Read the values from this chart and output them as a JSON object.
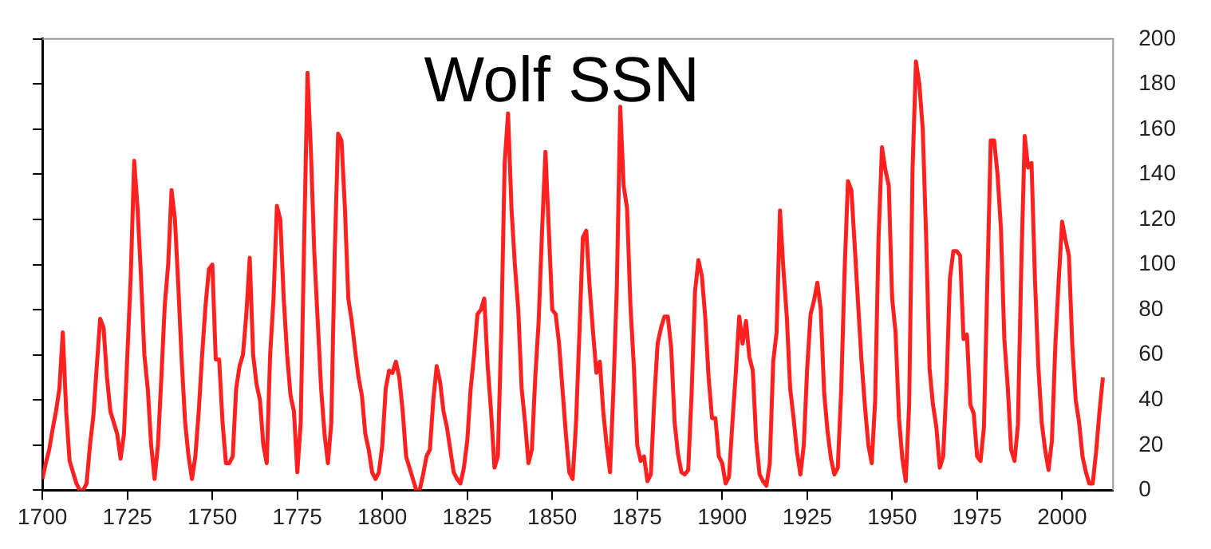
{
  "chart_data": {
    "type": "line",
    "title": "Wolf SSN",
    "x": [
      1700,
      1701,
      1702,
      1703,
      1704,
      1705,
      1706,
      1707,
      1708,
      1709,
      1710,
      1711,
      1712,
      1713,
      1714,
      1715,
      1716,
      1717,
      1718,
      1719,
      1720,
      1721,
      1722,
      1723,
      1724,
      1725,
      1726,
      1727,
      1728,
      1729,
      1730,
      1731,
      1732,
      1733,
      1734,
      1735,
      1736,
      1737,
      1738,
      1739,
      1740,
      1741,
      1742,
      1743,
      1744,
      1745,
      1746,
      1747,
      1748,
      1749,
      1750,
      1751,
      1752,
      1753,
      1754,
      1755,
      1756,
      1757,
      1758,
      1759,
      1760,
      1761,
      1762,
      1763,
      1764,
      1765,
      1766,
      1767,
      1768,
      1769,
      1770,
      1771,
      1772,
      1773,
      1774,
      1775,
      1776,
      1777,
      1778,
      1779,
      1780,
      1781,
      1782,
      1783,
      1784,
      1785,
      1786,
      1787,
      1788,
      1789,
      1790,
      1791,
      1792,
      1793,
      1794,
      1795,
      1796,
      1797,
      1798,
      1799,
      1800,
      1801,
      1802,
      1803,
      1804,
      1805,
      1806,
      1807,
      1808,
      1809,
      1810,
      1811,
      1812,
      1813,
      1814,
      1815,
      1816,
      1817,
      1818,
      1819,
      1820,
      1821,
      1822,
      1823,
      1824,
      1825,
      1826,
      1827,
      1828,
      1829,
      1830,
      1831,
      1832,
      1833,
      1834,
      1835,
      1836,
      1837,
      1838,
      1839,
      1840,
      1841,
      1842,
      1843,
      1844,
      1845,
      1846,
      1847,
      1848,
      1849,
      1850,
      1851,
      1852,
      1853,
      1854,
      1855,
      1856,
      1857,
      1858,
      1859,
      1860,
      1861,
      1862,
      1863,
      1864,
      1865,
      1866,
      1867,
      1868,
      1869,
      1870,
      1871,
      1872,
      1873,
      1874,
      1875,
      1876,
      1877,
      1878,
      1879,
      1880,
      1881,
      1882,
      1883,
      1884,
      1885,
      1886,
      1887,
      1888,
      1889,
      1890,
      1891,
      1892,
      1893,
      1894,
      1895,
      1896,
      1897,
      1898,
      1899,
      1900,
      1901,
      1902,
      1903,
      1904,
      1905,
      1906,
      1907,
      1908,
      1909,
      1910,
      1911,
      1912,
      1913,
      1914,
      1915,
      1916,
      1917,
      1918,
      1919,
      1920,
      1921,
      1922,
      1923,
      1924,
      1925,
      1926,
      1927,
      1928,
      1929,
      1930,
      1931,
      1932,
      1933,
      1934,
      1935,
      1936,
      1937,
      1938,
      1939,
      1940,
      1941,
      1942,
      1943,
      1944,
      1945,
      1946,
      1947,
      1948,
      1949,
      1950,
      1951,
      1952,
      1953,
      1954,
      1955,
      1956,
      1957,
      1958,
      1959,
      1960,
      1961,
      1962,
      1963,
      1964,
      1965,
      1966,
      1967,
      1968,
      1969,
      1970,
      1971,
      1972,
      1973,
      1974,
      1975,
      1976,
      1977,
      1978,
      1979,
      1980,
      1981,
      1982,
      1983,
      1984,
      1985,
      1986,
      1987,
      1988,
      1989,
      1990,
      1991,
      1992,
      1993,
      1994,
      1995,
      1996,
      1997,
      1998,
      1999,
      2000,
      2001,
      2002,
      2003,
      2004,
      2005,
      2006,
      2007,
      2008,
      2009,
      2010,
      2011,
      2012
    ],
    "series": [
      {
        "color": "#ff2020",
        "values": [
          5,
          12,
          18,
          27,
          35,
          45,
          70,
          35,
          13,
          8,
          3,
          0,
          0,
          3,
          20,
          33,
          55,
          76,
          72,
          50,
          35,
          30,
          25,
          14,
          25,
          60,
          95,
          146,
          125,
          95,
          60,
          45,
          20,
          5,
          20,
          50,
          82,
          100,
          133,
          120,
          90,
          57,
          30,
          15,
          5,
          15,
          35,
          60,
          82,
          98,
          100,
          58,
          58,
          30,
          12,
          12,
          15,
          45,
          55,
          60,
          78,
          103,
          60,
          47,
          40,
          20,
          12,
          60,
          85,
          126,
          120,
          85,
          60,
          42,
          35,
          8,
          30,
          110,
          185,
          150,
          105,
          75,
          45,
          25,
          12,
          30,
          105,
          158,
          155,
          125,
          85,
          75,
          62,
          50,
          42,
          25,
          18,
          8,
          5,
          8,
          20,
          45,
          53,
          52,
          57,
          50,
          35,
          15,
          10,
          5,
          0,
          0,
          7,
          15,
          18,
          40,
          55,
          48,
          35,
          28,
          18,
          8,
          5,
          3,
          10,
          22,
          45,
          60,
          78,
          80,
          85,
          55,
          35,
          10,
          15,
          70,
          145,
          167,
          125,
          100,
          80,
          45,
          30,
          12,
          18,
          50,
          75,
          115,
          150,
          115,
          80,
          78,
          65,
          45,
          25,
          8,
          5,
          30,
          70,
          112,
          115,
          90,
          70,
          52,
          57,
          35,
          20,
          8,
          45,
          90,
          170,
          135,
          125,
          82,
          55,
          20,
          13,
          15,
          4,
          7,
          40,
          65,
          72,
          77,
          77,
          63,
          30,
          16,
          8,
          7,
          9,
          43,
          88,
          102,
          95,
          77,
          50,
          32,
          32,
          15,
          12,
          3,
          6,
          30,
          52,
          77,
          65,
          75,
          59,
          53,
          22,
          7,
          4,
          2,
          12,
          57,
          70,
          124,
          98,
          77,
          45,
          32,
          17,
          7,
          20,
          54,
          78,
          84,
          92,
          80,
          43,
          26,
          14,
          7,
          10,
          44,
          97,
          137,
          133,
          108,
          82,
          57,
          37,
          20,
          12,
          40,
          112,
          152,
          142,
          135,
          85,
          70,
          32,
          14,
          4,
          38,
          142,
          190,
          180,
          160,
          112,
          54,
          38,
          28,
          10,
          15,
          47,
          94,
          106,
          106,
          104,
          67,
          69,
          38,
          34,
          15,
          13,
          28,
          92,
          155,
          155,
          140,
          116,
          67,
          46,
          18,
          13,
          29,
          100,
          157,
          143,
          145,
          94,
          55,
          30,
          18,
          9,
          22,
          64,
          93,
          119,
          111,
          104,
          64,
          40,
          30,
          15,
          8,
          3,
          3,
          17,
          35,
          50
        ]
      }
    ],
    "xlim": [
      1700,
      2015
    ],
    "xticks": [
      1700,
      1725,
      1750,
      1775,
      1800,
      1825,
      1850,
      1875,
      1900,
      1925,
      1950,
      1975,
      2000
    ],
    "ylim": [
      0,
      200
    ],
    "yticks": [
      0,
      20,
      40,
      60,
      80,
      100,
      120,
      140,
      160,
      180,
      200
    ],
    "grid": false,
    "legend": false,
    "marker": "none",
    "line_style": "solid"
  }
}
